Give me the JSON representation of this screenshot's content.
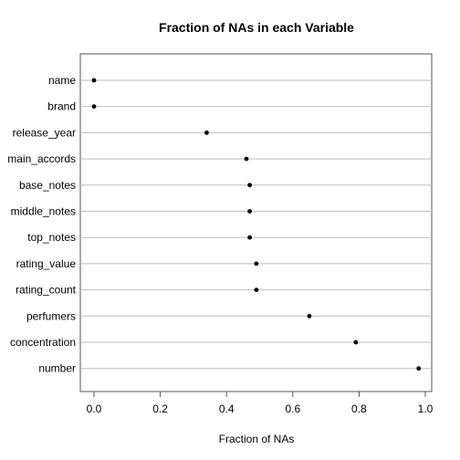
{
  "chart_data": {
    "type": "scatter",
    "title": "Fraction of NAs in each Variable",
    "xlabel": "Fraction of NAs",
    "ylabel": "",
    "xlim": [
      -0.04,
      1.02
    ],
    "xticks": [
      "0.0",
      "0.2",
      "0.4",
      "0.6",
      "0.8",
      "1.0"
    ],
    "grid": "horizontal",
    "point_color": "#000000",
    "grid_color": "#bebebe",
    "categories": [
      "name",
      "brand",
      "release_year",
      "main_accords",
      "base_notes",
      "middle_notes",
      "top_notes",
      "rating_value",
      "rating_count",
      "perfumers",
      "concentration",
      "number"
    ],
    "values": [
      0.0,
      0.0,
      0.34,
      0.46,
      0.47,
      0.47,
      0.47,
      0.49,
      0.49,
      0.65,
      0.79,
      0.98
    ]
  }
}
